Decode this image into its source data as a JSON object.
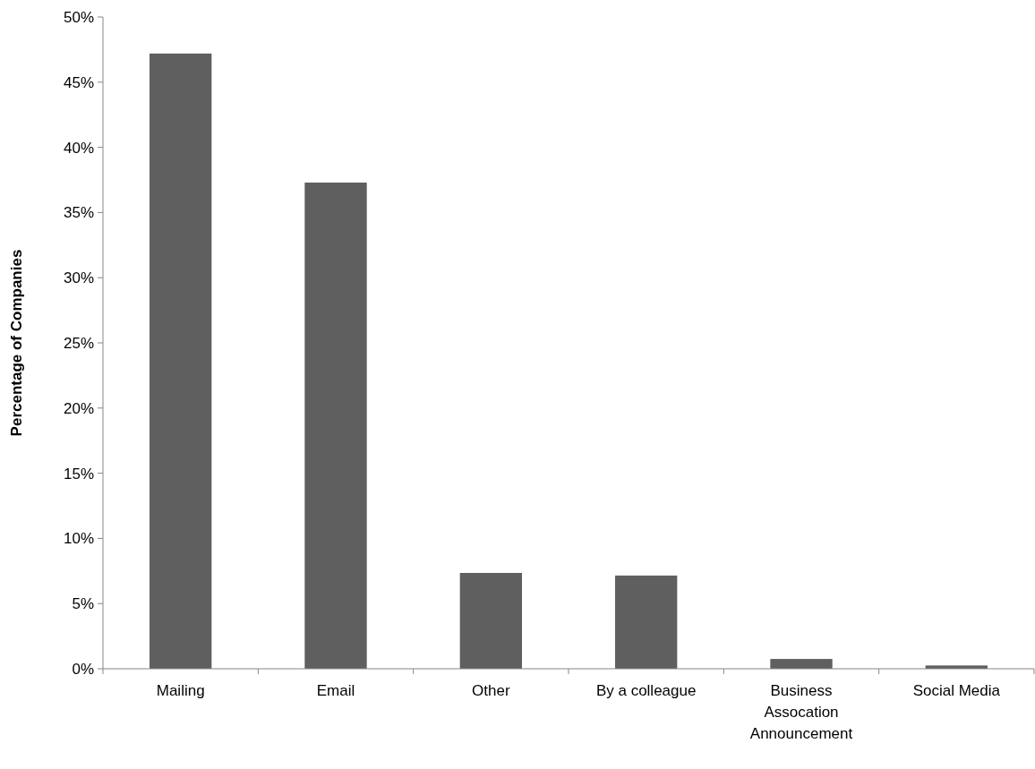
{
  "chart_data": {
    "type": "bar",
    "ylabel": "Percentage of Companies",
    "categories": [
      "Mailing",
      "Email",
      "Other",
      "By a colleague",
      "Business Assocation Announcement",
      "Social Media"
    ],
    "values": [
      47.2,
      37.3,
      7.35,
      7.15,
      0.75,
      0.25
    ],
    "color": "#5f5f5f",
    "ylim": [
      0,
      50
    ],
    "yticks": [
      {
        "value": 0,
        "label": "0%"
      },
      {
        "value": 5,
        "label": "5%"
      },
      {
        "value": 10,
        "label": "10%"
      },
      {
        "value": 15,
        "label": "15%"
      },
      {
        "value": 20,
        "label": "20%"
      },
      {
        "value": 25,
        "label": "25%"
      },
      {
        "value": 30,
        "label": "30%"
      },
      {
        "value": 35,
        "label": "35%"
      },
      {
        "value": 40,
        "label": "40%"
      },
      {
        "value": 45,
        "label": "45%"
      },
      {
        "value": 50,
        "label": "50%"
      }
    ],
    "grid": false
  }
}
